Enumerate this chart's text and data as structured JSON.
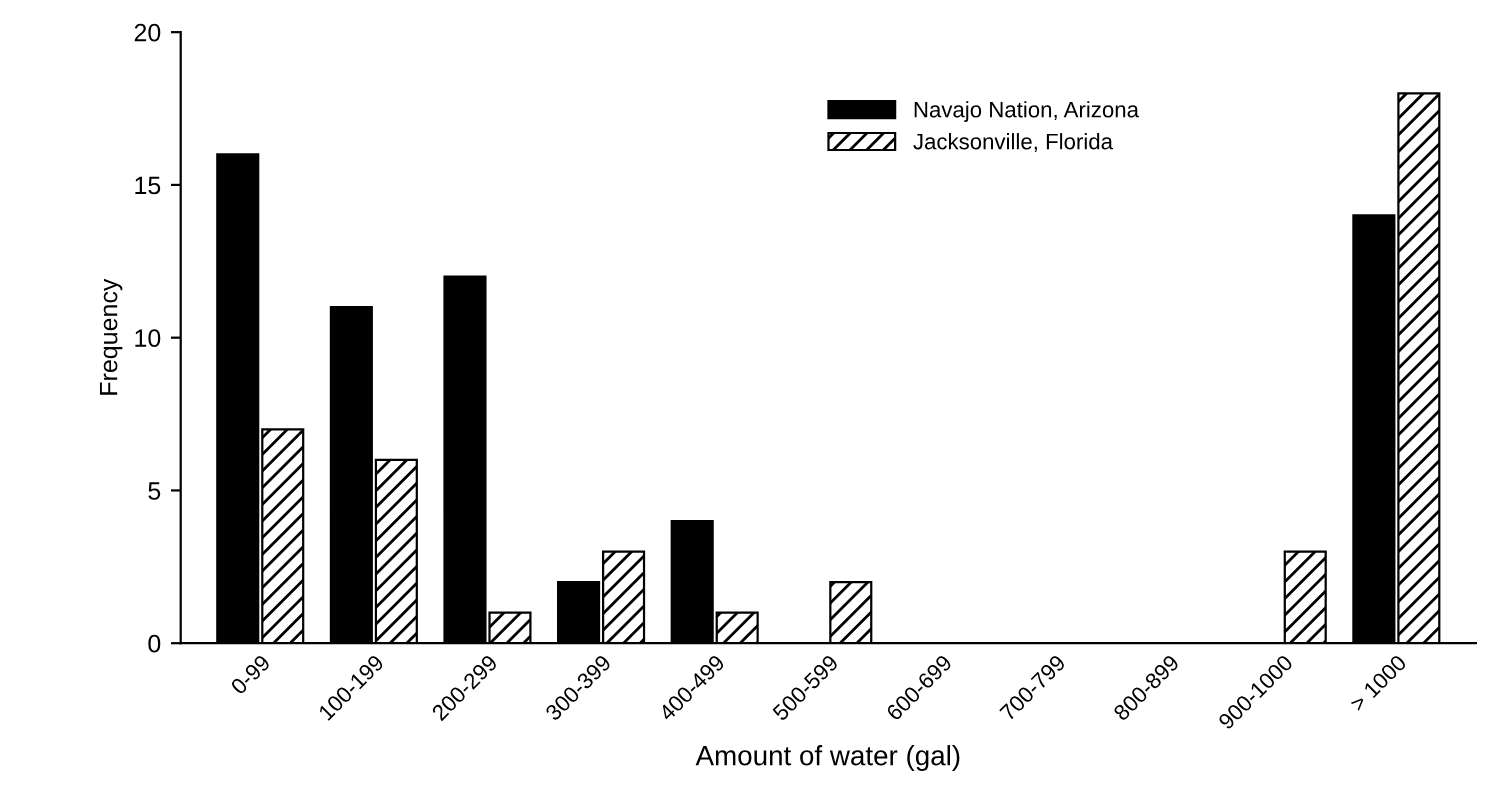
{
  "chart_data": {
    "type": "bar",
    "xlabel": "Amount of water (gal)",
    "ylabel": "Frequency",
    "categories": [
      "0-99",
      "100-199",
      "200-299",
      "300-399",
      "400-499",
      "500-599",
      "600-699",
      "700-799",
      "800-899",
      "900-1000",
      "> 1000"
    ],
    "series": [
      {
        "name": "Navajo Nation, Arizona",
        "color": "#000000",
        "values": [
          16,
          11,
          12,
          2,
          4,
          0,
          0,
          0,
          0,
          0,
          14
        ]
      },
      {
        "name": "Jacksonville, Florida",
        "color": "#000000",
        "values": [
          7,
          6,
          1,
          3,
          1,
          2,
          0,
          0,
          0,
          3,
          18
        ]
      }
    ],
    "ylim": [
      0,
      20
    ],
    "yticks": [
      0,
      5,
      10,
      15,
      20
    ],
    "grid": false,
    "legend": "top"
  }
}
